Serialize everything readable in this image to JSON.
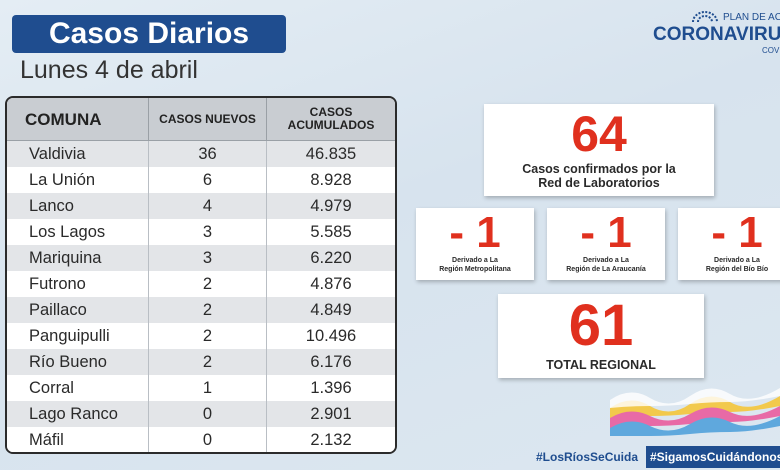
{
  "header": {
    "title": "Casos Diarios",
    "date": "Lunes 4 de abril"
  },
  "brand": {
    "plan": "PLAN DE ACC",
    "name": "CORONAVIRU",
    "sub": "COVI",
    "icon": "government-crest-icon",
    "color": "#1f4d8f"
  },
  "table": {
    "columns": [
      "COMUNA",
      "CASOS NUEVOS",
      "CASOS ACUMULADOS"
    ],
    "rows": [
      {
        "comuna": "Valdivia",
        "nuevos": "36",
        "acumulados": "46.835"
      },
      {
        "comuna": "La Unión",
        "nuevos": "6",
        "acumulados": "8.928"
      },
      {
        "comuna": "Lanco",
        "nuevos": "4",
        "acumulados": "4.979"
      },
      {
        "comuna": "Los Lagos",
        "nuevos": "3",
        "acumulados": "5.585"
      },
      {
        "comuna": "Mariquina",
        "nuevos": "3",
        "acumulados": "6.220"
      },
      {
        "comuna": "Futrono",
        "nuevos": "2",
        "acumulados": "4.876"
      },
      {
        "comuna": "Paillaco",
        "nuevos": "2",
        "acumulados": "4.849"
      },
      {
        "comuna": "Panguipulli",
        "nuevos": "2",
        "acumulados": "10.496"
      },
      {
        "comuna": "Río Bueno",
        "nuevos": "2",
        "acumulados": "6.176"
      },
      {
        "comuna": "Corral",
        "nuevos": "1",
        "acumulados": "1.396"
      },
      {
        "comuna": "Lago Ranco",
        "nuevos": "0",
        "acumulados": "2.901"
      },
      {
        "comuna": "Máfil",
        "nuevos": "0",
        "acumulados": "2.132"
      }
    ]
  },
  "summary": {
    "confirmed": {
      "value": "64",
      "label_line1": "Casos confirmados  por la",
      "label_line2": "Red de Laboratorios"
    },
    "derived": [
      {
        "value": "- 1",
        "label_line1": "Derivado a La",
        "label_line2": "Región Metropolitana"
      },
      {
        "value": "- 1",
        "label_line1": "Derivado a La",
        "label_line2": "Región de La Araucanía"
      },
      {
        "value": "- 1",
        "label_line1": "Derivado a La",
        "label_line2": "Región del Bío Bío"
      }
    ],
    "total": {
      "value": "61",
      "label": "TOTAL REGIONAL"
    }
  },
  "footer": {
    "hashtag1": "#LosRíosSeCuida",
    "hashtag2": "#SigamosCuidándonos"
  },
  "colors": {
    "accent_red": "#e0301e",
    "brand_blue": "#1f4d8f"
  }
}
